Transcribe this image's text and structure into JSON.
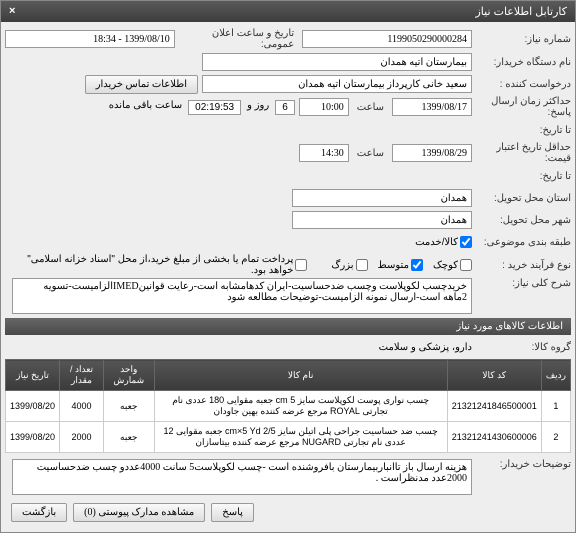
{
  "window": {
    "title": "کارتابل اطلاعات نیاز"
  },
  "labels": {
    "need_no": "شماره نیاز:",
    "pub_date": "تاریخ و ساعت اعلان عمومی:",
    "buyer_org": "نام دستگاه خریدار:",
    "requester": "درخواست کننده :",
    "contact_btn": "اطلاعات تماس خریدار",
    "resp_deadline": "حداکثر زمان ارسال پاسخ:",
    "until": "تا تاریخ:",
    "valid_deadline": "حداقل تاریخ اعتبار قیمت:",
    "delivery_prov": "استان محل تحویل:",
    "delivery_city": "شهر محل تحویل:",
    "budget_class": "طبقه بندی موضوعی:",
    "process_type": "نوع فرآیند خرید :",
    "goods_service": "کالا/خدمت",
    "note_prefix": "پرداخت تمام یا بخشی از مبلغ خرید،از محل \"اسناد خزانه اسلامی\" خواهد بود.",
    "desc_title": "شرح کلی نیاز:",
    "items_title": "اطلاعات کالاهای مورد نیاز",
    "group": "گروه کالا:",
    "buyer_notes": "توضیحات خریدار:",
    "saat": "ساعت",
    "rooz": "روز و",
    "remain": "ساعت باقی مانده",
    "small": "کوچک",
    "medium": "متوسط",
    "large": "بزرگ"
  },
  "fields": {
    "need_no": "1199050290000284",
    "pub_date": "1399/08/10 - 18:34",
    "buyer_org": "بیمارستان آتیه همدان",
    "requester": "سعید خانی کارپرداز بیمارستان آتیه همدان",
    "resp_date": "1399/08/17",
    "resp_time": "10:00",
    "days": "6",
    "countdown": "02:19:53",
    "valid_date": "1399/08/29",
    "valid_time": "14:30",
    "province": "همدان",
    "city": "همدان",
    "budget_goods": true,
    "budget_service": false,
    "size_small": false,
    "size_medium": true,
    "size_large": false,
    "treasury_note": false,
    "description": "خریدچسب لکوپلاست وچسب ضدحساسیت-ایران کدهامشابه است-رعایت قوانینIMEDالزامیست-تسویه 2ماهه است-ارسال نمونه الزامیست-توضیحات مطالعه شود",
    "group": "دارو، پزشکی و سلامت",
    "buyer_notes": "هزینه ارسال باز تاانباربیمارستان بافروشنده است -چسب لکوپلاست5 سانت 4000عددو چسب ضدحساسیت 2000عدد مدنظراست ."
  },
  "table": {
    "cols": [
      "ردیف",
      "کد کالا",
      "نام کالا",
      "واحد شمارش",
      "تعداد / مقدار",
      "تاریخ نیاز"
    ],
    "rows": [
      [
        "1",
        "21321241846500001",
        "چسب نواری پوست لکوپلاست سایز 5 cm جعبه مقوایی 180 عددی نام تجارتی ROYAL مرجع عرضه کننده بهین جاودان",
        "جعبه",
        "4000",
        "1399/08/20"
      ],
      [
        "2",
        "21321241430600006",
        "چسب ضد حساسیت جراحی پلی اتیلن سایز cm×5 Yd 2/5 جعبه مقوایی 12 عددی نام تجارتی NUGARD مرجع عرضه کننده بیتاسازان",
        "جعبه",
        "2000",
        "1399/08/20"
      ]
    ]
  },
  "footer": {
    "reply": "پاسخ",
    "attach": "مشاهده مدارک پیوستی (0)",
    "back": "بازگشت"
  }
}
